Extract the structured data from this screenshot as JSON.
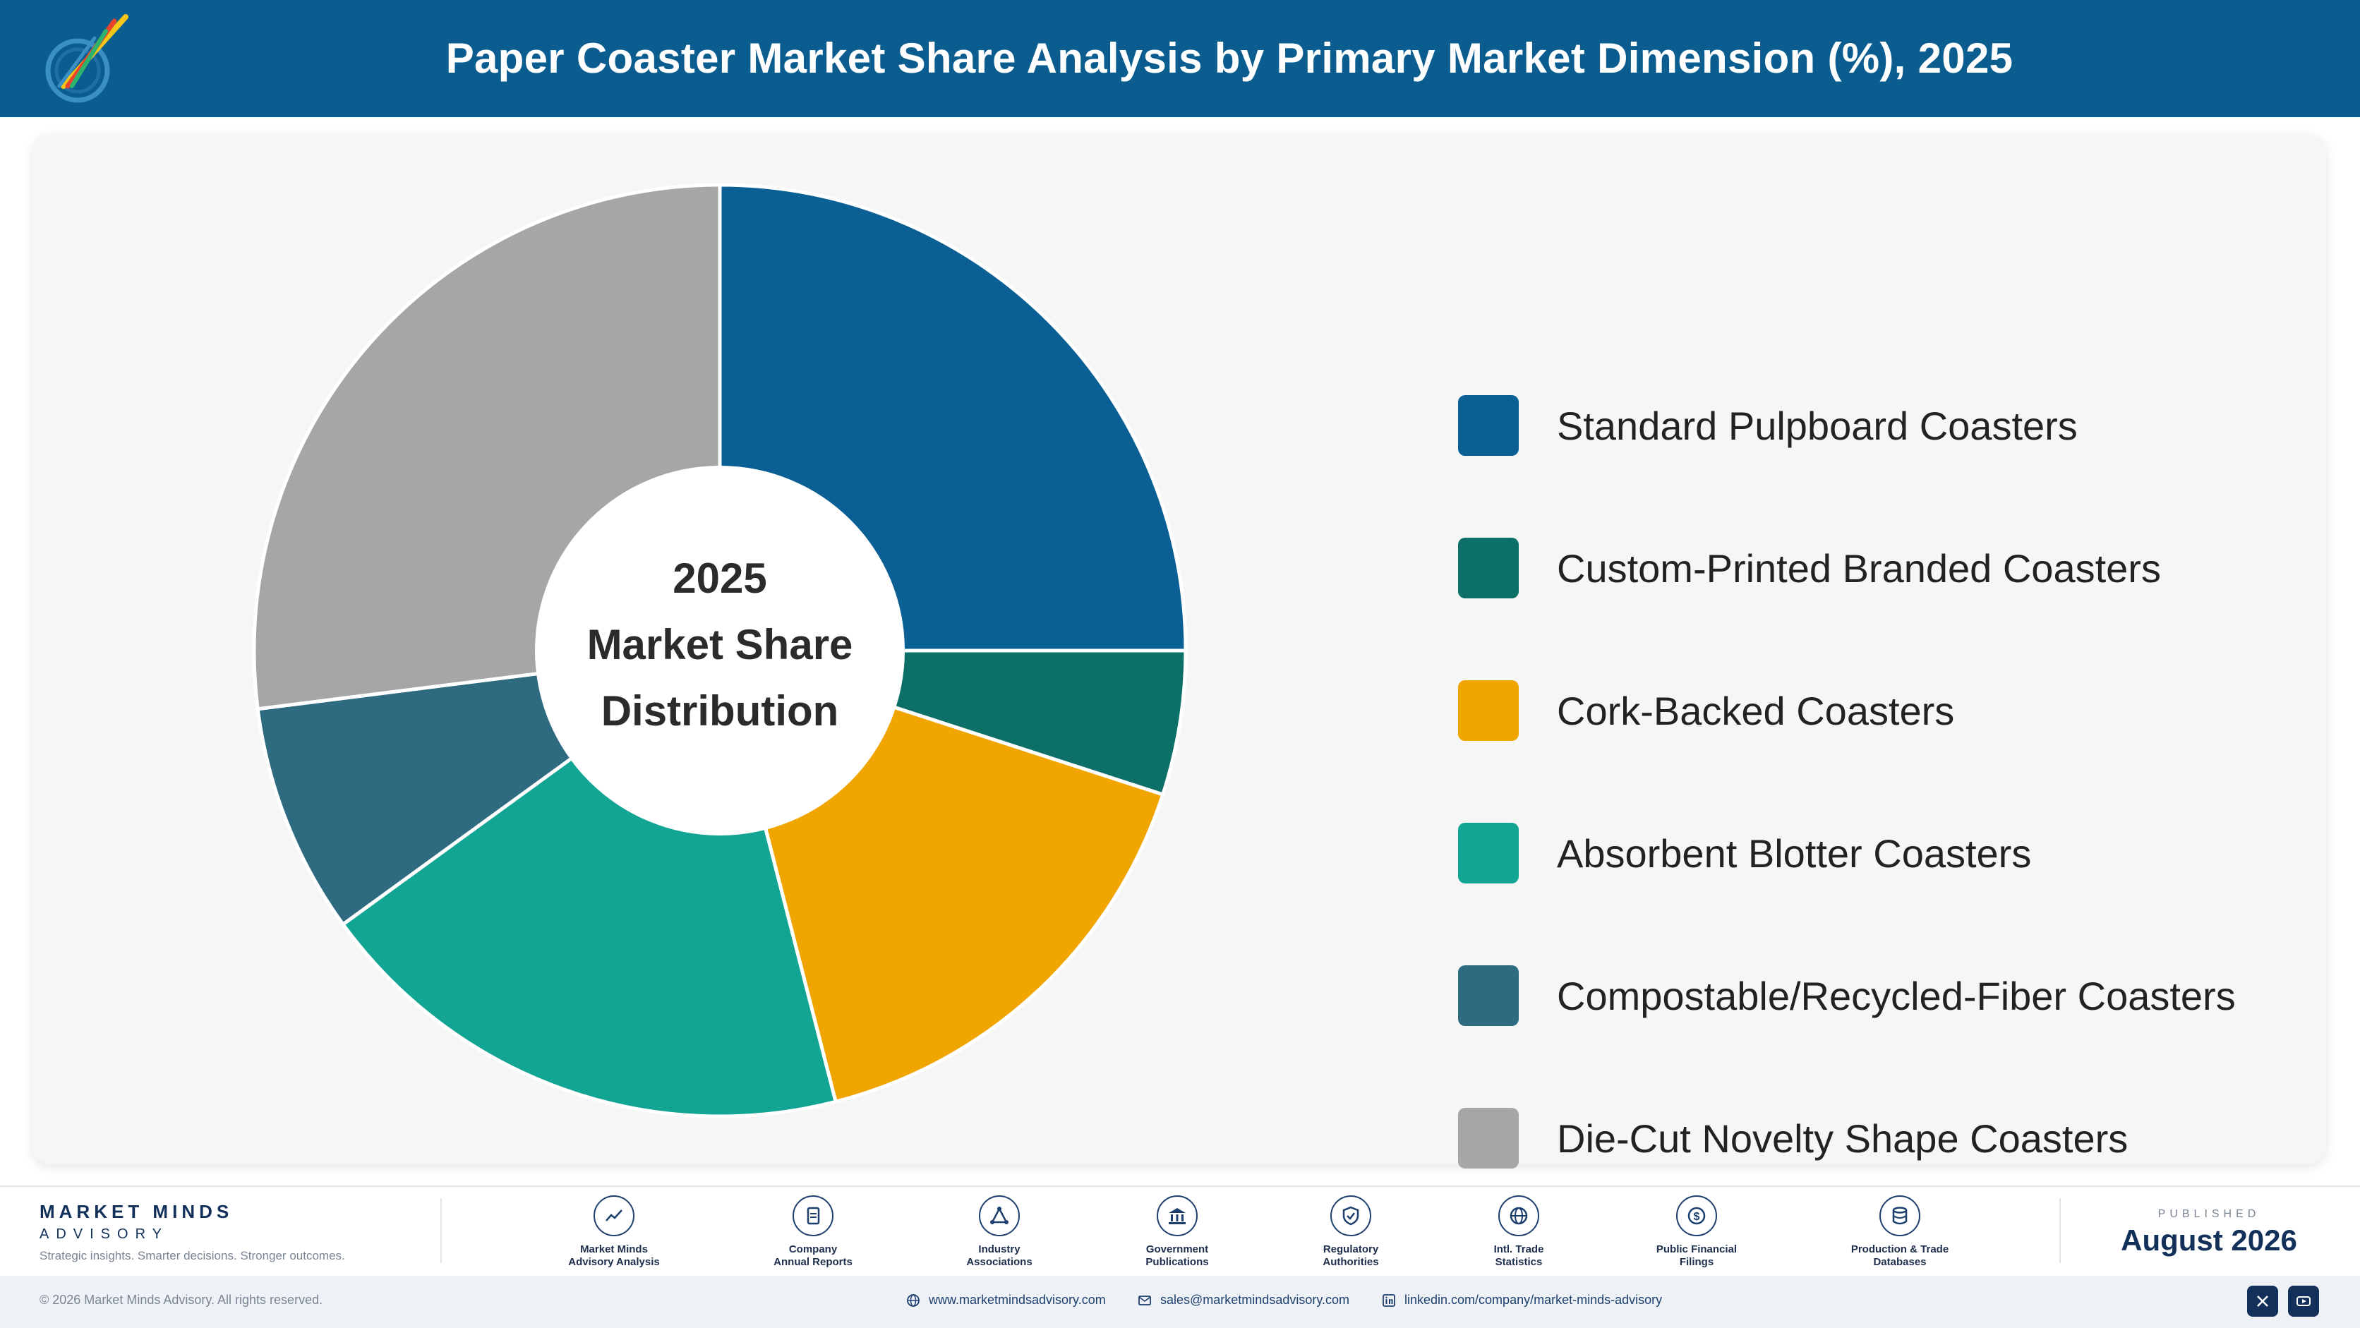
{
  "header": {
    "title": "Paper Coaster Market Share Analysis by Primary Market Dimension (%), 2025"
  },
  "chart_data": {
    "type": "pie",
    "variant": "donut",
    "title": "Paper Coaster Market Share Analysis by Primary Market Dimension (%), 2025",
    "center_label": [
      "2025",
      "Market Share",
      "Distribution"
    ],
    "legend_position": "right",
    "slices": [
      {
        "name": "Standard Pulpboard Coasters",
        "value": 25,
        "color": "#0a5f94"
      },
      {
        "name": "Custom-Printed Branded Coasters",
        "value": 5,
        "color": "#0d7068"
      },
      {
        "name": "Cork-Backed Coasters",
        "value": 16,
        "color": "#f0a500"
      },
      {
        "name": "Absorbent Blotter Coasters",
        "value": 19,
        "color": "#12a593"
      },
      {
        "name": "Compostable/Recycled-Fiber Coasters",
        "value": 8,
        "color": "#2e6b80"
      },
      {
        "name": "Die-Cut Novelty Shape Coasters",
        "value": 27,
        "color": "#a6a6a6"
      }
    ]
  },
  "footer": {
    "brand_name": "MARKET MINDS",
    "brand_sub": "ADVISORY",
    "tagline": "Strategic insights. Smarter decisions. Stronger outcomes.",
    "sources": [
      {
        "line1": "Market Minds",
        "line2": "Advisory Analysis",
        "icon": "trend-icon"
      },
      {
        "line1": "Company",
        "line2": "Annual Reports",
        "icon": "document-icon"
      },
      {
        "line1": "Industry",
        "line2": "Associations",
        "icon": "network-icon"
      },
      {
        "line1": "Government",
        "line2": "Publications",
        "icon": "bank-icon"
      },
      {
        "line1": "Regulatory",
        "line2": "Authorities",
        "icon": "shield-icon"
      },
      {
        "line1": "Intl. Trade",
        "line2": "Statistics",
        "icon": "globe-icon"
      },
      {
        "line1": "Public Financial",
        "line2": "Filings",
        "icon": "dollar-icon"
      },
      {
        "line1": "Production & Trade",
        "line2": "Databases",
        "icon": "database-icon"
      }
    ],
    "published_label": "PUBLISHED",
    "published_date": "August 2026"
  },
  "bottom_bar": {
    "copyright": "© 2026 Market Minds Advisory. All rights reserved.",
    "website": "www.marketmindsadvisory.com",
    "email": "sales@marketmindsadvisory.com",
    "linkedin": "linkedin.com/company/market-minds-advisory"
  },
  "colors": {
    "header_bg": "#0b5d8f",
    "brand_navy": "#12305a"
  }
}
